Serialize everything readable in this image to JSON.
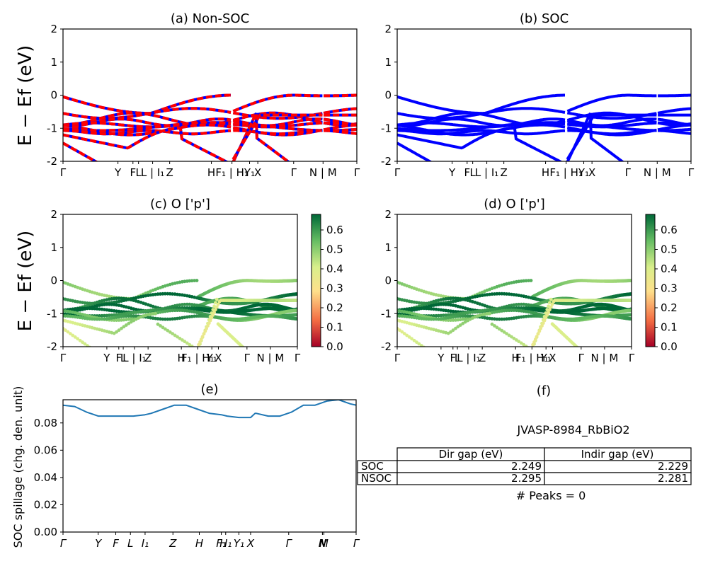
{
  "figure": {
    "ylabel_main": "E − Ef (eV)",
    "ylabel_spill": "SOC spillage (chg. den. unit)"
  },
  "kpath": {
    "labels": [
      "Γ",
      "Y",
      "F",
      "L",
      "L | I₁",
      "Z",
      "H",
      "F₁ | H₁",
      "Y₁",
      "X",
      "Γ",
      "N | M",
      "Γ"
    ]
  },
  "colorbar": {
    "ticks": [
      "0.0",
      "0.1",
      "0.2",
      "0.3",
      "0.4",
      "0.5",
      "0.6"
    ],
    "range": [
      0.0,
      0.68
    ],
    "colors": [
      "#a50026",
      "#f46d43",
      "#fee08b",
      "#d9ef8b",
      "#66bd63",
      "#006837"
    ]
  },
  "panels": {
    "a": {
      "title": "(a) Non-SOC"
    },
    "b": {
      "title": "(b) SOC"
    },
    "c": {
      "title": "(c)  O ['p']"
    },
    "d": {
      "title": "(d) O ['p']"
    },
    "e": {
      "title": "(e)"
    },
    "f": {
      "title": "(f)"
    }
  },
  "table": {
    "title": "JVASP-8984_RbBiO2",
    "headers": [
      "Dir gap (eV)",
      "Indir gap (eV)"
    ],
    "rows": [
      {
        "label": "SOC",
        "dir": "2.249",
        "indir": "2.229"
      },
      {
        "label": "NSOC",
        "dir": "2.295",
        "indir": "2.281"
      }
    ],
    "peaks": "# Peaks = 0"
  },
  "chart_data": [
    {
      "type": "line",
      "id": "a",
      "title": "(a) Non-SOC",
      "ylabel": "E − Ef (eV)",
      "ylim": [
        -2,
        2
      ],
      "yticks": [
        -2,
        -1,
        0,
        1,
        2
      ],
      "series_colors": [
        "#ff0000",
        "#0000ff"
      ],
      "note": "bands dashed red/blue"
    },
    {
      "type": "line",
      "id": "b",
      "title": "(b) SOC",
      "ylim": [
        -2,
        2
      ],
      "yticks": [
        -2,
        -1,
        0,
        1,
        2
      ],
      "series_colors": [
        "#0000ff"
      ]
    },
    {
      "type": "scatter",
      "id": "c",
      "title": "(c)  O ['p']",
      "ylabel": "E − Ef (eV)",
      "ylim": [
        -2,
        2
      ],
      "yticks": [
        -2,
        -1,
        0,
        1,
        2
      ],
      "colorbar_range": [
        0.0,
        0.68
      ]
    },
    {
      "type": "scatter",
      "id": "d",
      "title": "(d) O ['p']",
      "ylim": [
        -2,
        2
      ],
      "yticks": [
        -2,
        -1,
        0,
        1,
        2
      ],
      "colorbar_range": [
        0.0,
        0.68
      ]
    },
    {
      "type": "line",
      "id": "e",
      "title": "(e)",
      "ylabel": "SOC spillage (chg. den. unit)",
      "ylim": [
        0.0,
        0.097
      ],
      "yticks": [
        "0.00",
        "0.02",
        "0.04",
        "0.06",
        "0.08"
      ],
      "xtick_labels": [
        "Γ",
        "Y",
        "F",
        "L",
        "I₁",
        "Z",
        "H",
        "F₁",
        "H₁",
        "Y₁",
        "X",
        "Γ",
        "N",
        "M",
        "Γ"
      ],
      "x": [
        0,
        0.04,
        0.08,
        0.12,
        0.16,
        0.2,
        0.24,
        0.28,
        0.3,
        0.34,
        0.38,
        0.42,
        0.46,
        0.5,
        0.54,
        0.56,
        0.6,
        0.64,
        0.655,
        0.66,
        0.7,
        0.74,
        0.78,
        0.82,
        0.86,
        0.9,
        0.94,
        0.98,
        1.0
      ],
      "values": [
        0.093,
        0.092,
        0.088,
        0.085,
        0.085,
        0.085,
        0.085,
        0.086,
        0.087,
        0.09,
        0.093,
        0.093,
        0.09,
        0.087,
        0.086,
        0.085,
        0.084,
        0.084,
        0.087,
        0.087,
        0.085,
        0.085,
        0.088,
        0.093,
        0.093,
        0.096,
        0.097,
        0.094,
        0.093
      ],
      "color": "#1f77b4"
    }
  ]
}
